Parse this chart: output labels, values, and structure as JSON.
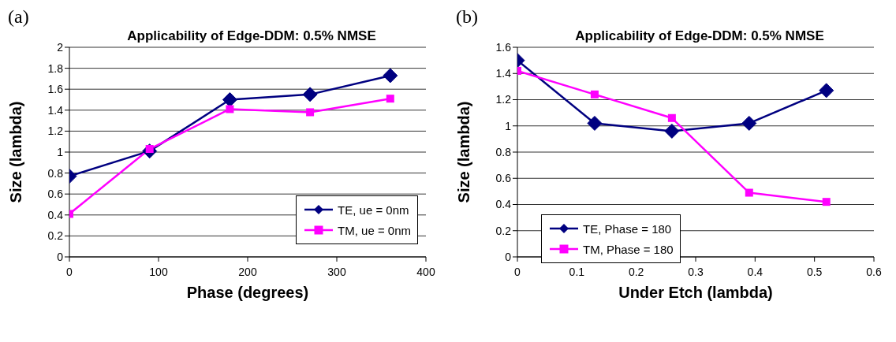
{
  "chart_data": [
    {
      "type": "line",
      "title": "Applicability of Edge-DDM: 0.5% NMSE",
      "xlabel": "Phase (degrees)",
      "ylabel": "Size (lambda)",
      "annotations": [
        "(a)"
      ],
      "x": [
        0,
        90,
        180,
        270,
        360
      ],
      "series": [
        {
          "name": "TE, ue = 0nm",
          "color": "#000080",
          "marker": "diamond",
          "values": [
            0.77,
            1.01,
            1.5,
            1.55,
            1.73
          ]
        },
        {
          "name": "TM, ue = 0nm",
          "color": "#ff00ff",
          "marker": "square",
          "values": [
            0.41,
            1.03,
            1.41,
            1.38,
            1.51
          ]
        }
      ],
      "xlim": [
        0,
        400
      ],
      "xticks": [
        0,
        100,
        200,
        300,
        400
      ],
      "ylim": [
        0,
        2
      ],
      "yticks": [
        0,
        0.2,
        0.4,
        0.6,
        0.8,
        1,
        1.2,
        1.4,
        1.6,
        1.8,
        2
      ],
      "grid": "y",
      "legend": "right"
    },
    {
      "type": "line",
      "title": "Applicability of Edge-DDM: 0.5% NMSE",
      "xlabel": "Under Etch (lambda)",
      "ylabel": "Size (lambda)",
      "annotations": [
        "(b)"
      ],
      "x": [
        0,
        0.13,
        0.26,
        0.39,
        0.52
      ],
      "series": [
        {
          "name": "TE, Phase = 180",
          "color": "#000080",
          "marker": "diamond",
          "values": [
            1.5,
            1.02,
            0.96,
            1.02,
            1.27
          ]
        },
        {
          "name": "TM, Phase = 180",
          "color": "#ff00ff",
          "marker": "square",
          "values": [
            1.42,
            1.24,
            1.06,
            0.49,
            0.42
          ]
        }
      ],
      "xlim": [
        0,
        0.6
      ],
      "xticks": [
        0,
        0.1,
        0.2,
        0.3,
        0.4,
        0.5,
        0.6
      ],
      "ylim": [
        0,
        1.6
      ],
      "yticks": [
        0,
        0.2,
        0.4,
        0.6,
        0.8,
        1,
        1.2,
        1.4,
        1.6
      ],
      "grid": "y",
      "legend": "bottom left"
    }
  ]
}
